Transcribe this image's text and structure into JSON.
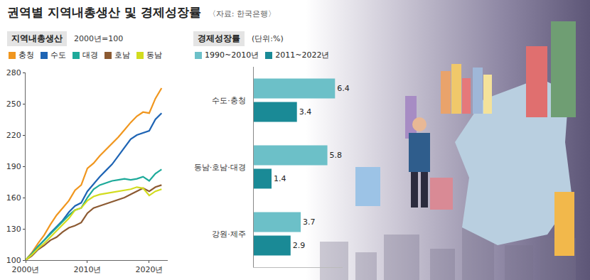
{
  "title": "권역별 지역내총생산 및 경제성장률",
  "source": "〈자료: 한국은행〉",
  "chart_data": [
    {
      "type": "line",
      "title": "지역내총생산",
      "subtitle": "2000년=100",
      "x": [
        2000,
        2001,
        2002,
        2003,
        2004,
        2005,
        2006,
        2007,
        2008,
        2009,
        2010,
        2011,
        2012,
        2013,
        2014,
        2015,
        2016,
        2017,
        2018,
        2019,
        2020,
        2021,
        2022
      ],
      "series": [
        {
          "name": "충청",
          "color": "#f0961e",
          "values": [
            100,
            107,
            116,
            124,
            134,
            143,
            150,
            157,
            167,
            172,
            188,
            193,
            200,
            206,
            212,
            218,
            225,
            232,
            238,
            242,
            241,
            255,
            265
          ]
        },
        {
          "name": "수도",
          "color": "#1e64b4",
          "values": [
            100,
            106,
            113,
            119,
            126,
            132,
            138,
            146,
            152,
            155,
            166,
            173,
            180,
            186,
            192,
            200,
            208,
            216,
            220,
            222,
            224,
            235,
            241
          ]
        },
        {
          "name": "대경",
          "color": "#1eaa9a",
          "values": [
            100,
            106,
            113,
            119,
            125,
            131,
            137,
            143,
            148,
            150,
            160,
            168,
            172,
            174,
            176,
            177,
            178,
            177,
            178,
            180,
            176,
            183,
            187
          ]
        },
        {
          "name": "호남",
          "color": "#8c5a32",
          "values": [
            100,
            104,
            110,
            114,
            119,
            122,
            127,
            131,
            133,
            136,
            145,
            150,
            152,
            154,
            156,
            158,
            160,
            163,
            166,
            169,
            166,
            170,
            172
          ]
        },
        {
          "name": "동남",
          "color": "#d2dc1e",
          "values": [
            100,
            105,
            111,
            116,
            122,
            128,
            134,
            140,
            148,
            150,
            157,
            161,
            163,
            164,
            165,
            166,
            167,
            168,
            170,
            169,
            162,
            166,
            168
          ]
        }
      ],
      "xlim": [
        2000,
        2023
      ],
      "xticks": [
        {
          "value": 2000,
          "label": "2000년"
        },
        {
          "value": 2010,
          "label": "2010년"
        },
        {
          "value": 2020,
          "label": "2020년"
        }
      ],
      "ylim": [
        100,
        280
      ],
      "yticks": [
        100,
        130,
        160,
        190,
        220,
        250,
        280
      ],
      "grid": false
    },
    {
      "type": "bar",
      "title": "경제성장률",
      "subtitle": "(단위:%)",
      "orientation": "horizontal",
      "categories": [
        "수도·충청",
        "동남·호남·대경",
        "강원·제주"
      ],
      "series": [
        {
          "name": "1990~2010년",
          "color": "#6cc0c8",
          "values": [
            6.4,
            5.8,
            3.7
          ]
        },
        {
          "name": "2011~2022년",
          "color": "#1a8a96",
          "values": [
            3.4,
            1.4,
            2.9
          ]
        }
      ],
      "xlim": [
        0,
        7
      ],
      "tick_labels": "y",
      "data_labels": true,
      "grid": false
    }
  ]
}
